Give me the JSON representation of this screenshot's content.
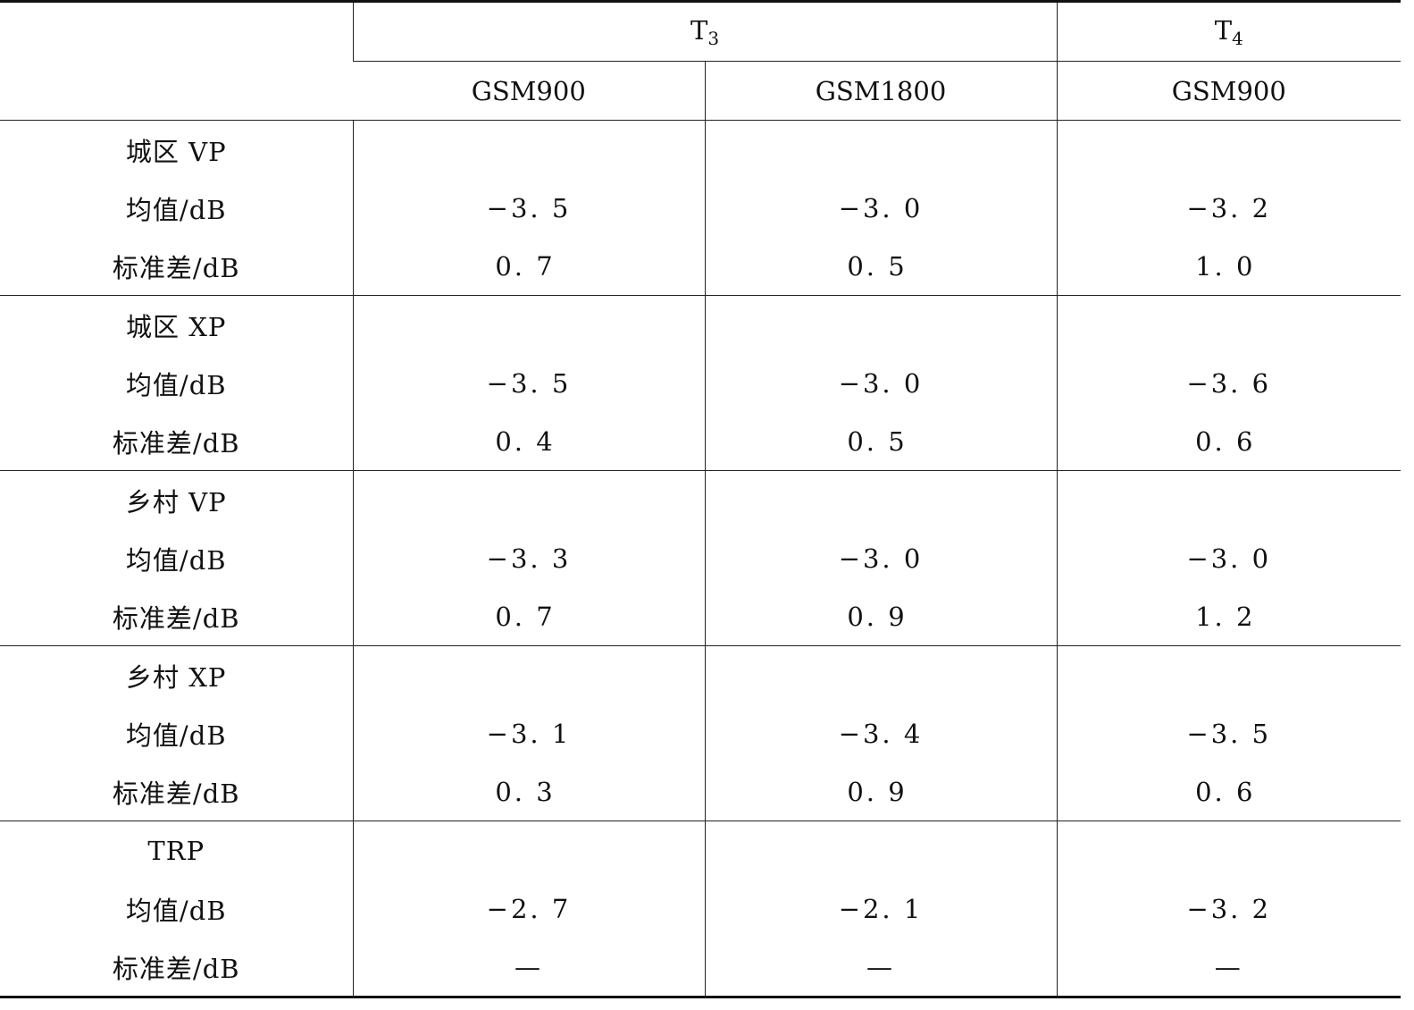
{
  "header": {
    "groups": [
      {
        "label": "T",
        "sub": "3"
      },
      {
        "label": "T",
        "sub": "4"
      }
    ],
    "columns": [
      "GSM900",
      "GSM1800",
      "GSM900"
    ]
  },
  "sections": [
    {
      "title": "城区 VP",
      "mean_label": "均值/dB",
      "std_label": "标准差/dB",
      "mean": [
        "−3. 5",
        "−3. 0",
        "−3. 2"
      ],
      "std": [
        "0. 7",
        "0. 5",
        "1. 0"
      ]
    },
    {
      "title": "城区 XP",
      "mean_label": "均值/dB",
      "std_label": "标准差/dB",
      "mean": [
        "−3. 5",
        "−3. 0",
        "−3. 6"
      ],
      "std": [
        "0. 4",
        "0. 5",
        "0. 6"
      ]
    },
    {
      "title": "乡村 VP",
      "mean_label": "均值/dB",
      "std_label": "标准差/dB",
      "mean": [
        "−3. 3",
        "−3. 0",
        "−3. 0"
      ],
      "std": [
        "0. 7",
        "0. 9",
        "1. 2"
      ]
    },
    {
      "title": "乡村 XP",
      "mean_label": "均值/dB",
      "std_label": "标准差/dB",
      "mean": [
        "−3. 1",
        "−3. 4",
        "−3. 5"
      ],
      "std": [
        "0. 3",
        "0. 9",
        "0. 6"
      ]
    },
    {
      "title": "TRP",
      "mean_label": "均值/dB",
      "std_label": "标准差/dB",
      "mean": [
        "−2. 7",
        "−2. 1",
        "−3. 2"
      ],
      "std": [
        "—",
        "—",
        "—"
      ]
    }
  ]
}
